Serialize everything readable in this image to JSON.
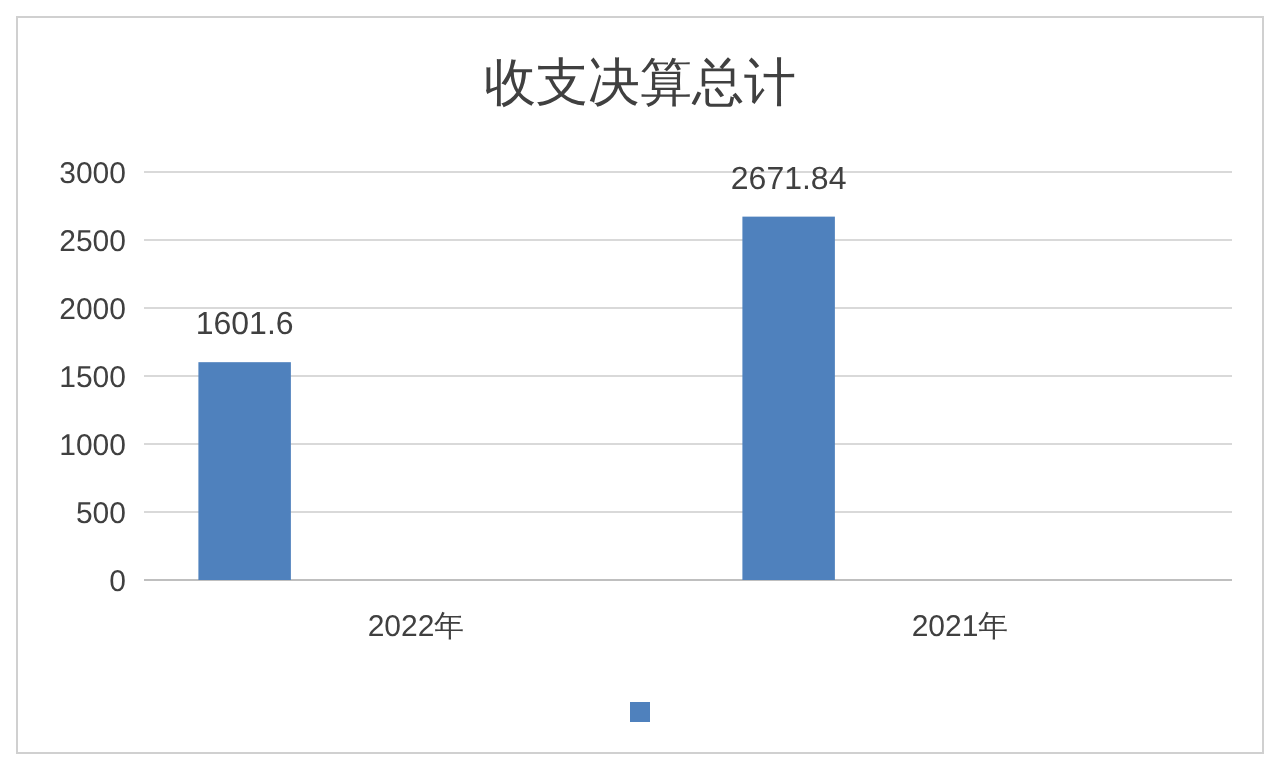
{
  "chart_data": {
    "type": "bar",
    "title": "收支决算总计",
    "categories": [
      "2022年",
      "2021年"
    ],
    "series": [
      {
        "color": "#4f81bd",
        "values": [
          1601.6,
          2671.84
        ]
      }
    ],
    "ylim": [
      0,
      3000
    ],
    "yticks": [
      0,
      500,
      1000,
      1500,
      2000,
      2500,
      3000
    ],
    "grid": "y",
    "data_labels": true
  }
}
